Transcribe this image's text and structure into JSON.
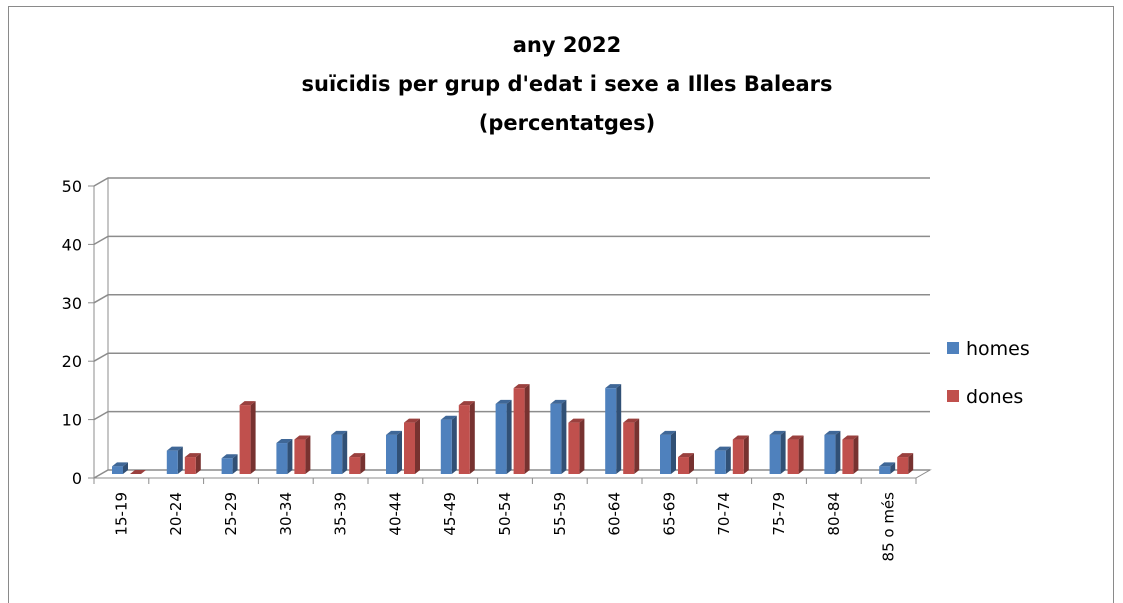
{
  "chart_data": {
    "type": "bar",
    "title_lines": [
      "any 2022",
      "suïcidis per grup d'edat i sexe a Illes Balears",
      "(percentatges)"
    ],
    "categories": [
      "15-19",
      "20-24",
      "25-29",
      "30-34",
      "35-39",
      "40-44",
      "45-49",
      "50-54",
      "55-59",
      "60-64",
      "65-69",
      "70-74",
      "75-79",
      "80-84",
      "85 o més"
    ],
    "series": [
      {
        "name": "homes",
        "color": "#4f81bd",
        "values": [
          1.3,
          4.0,
          2.7,
          5.3,
          6.7,
          6.7,
          9.3,
          12.0,
          12.0,
          14.7,
          6.7,
          4.0,
          6.7,
          6.7,
          1.3
        ]
      },
      {
        "name": "dones",
        "color": "#c0504d",
        "values": [
          0,
          2.9,
          11.8,
          5.9,
          2.9,
          8.8,
          11.8,
          14.7,
          8.8,
          8.8,
          2.9,
          5.9,
          5.9,
          5.9,
          2.9
        ]
      }
    ],
    "y_ticks": [
      "0",
      "10",
      "20",
      "30",
      "40",
      "50"
    ],
    "ylim": [
      0,
      50
    ],
    "grid": true,
    "legend_position": "right",
    "style": "3d-clustered-column"
  }
}
